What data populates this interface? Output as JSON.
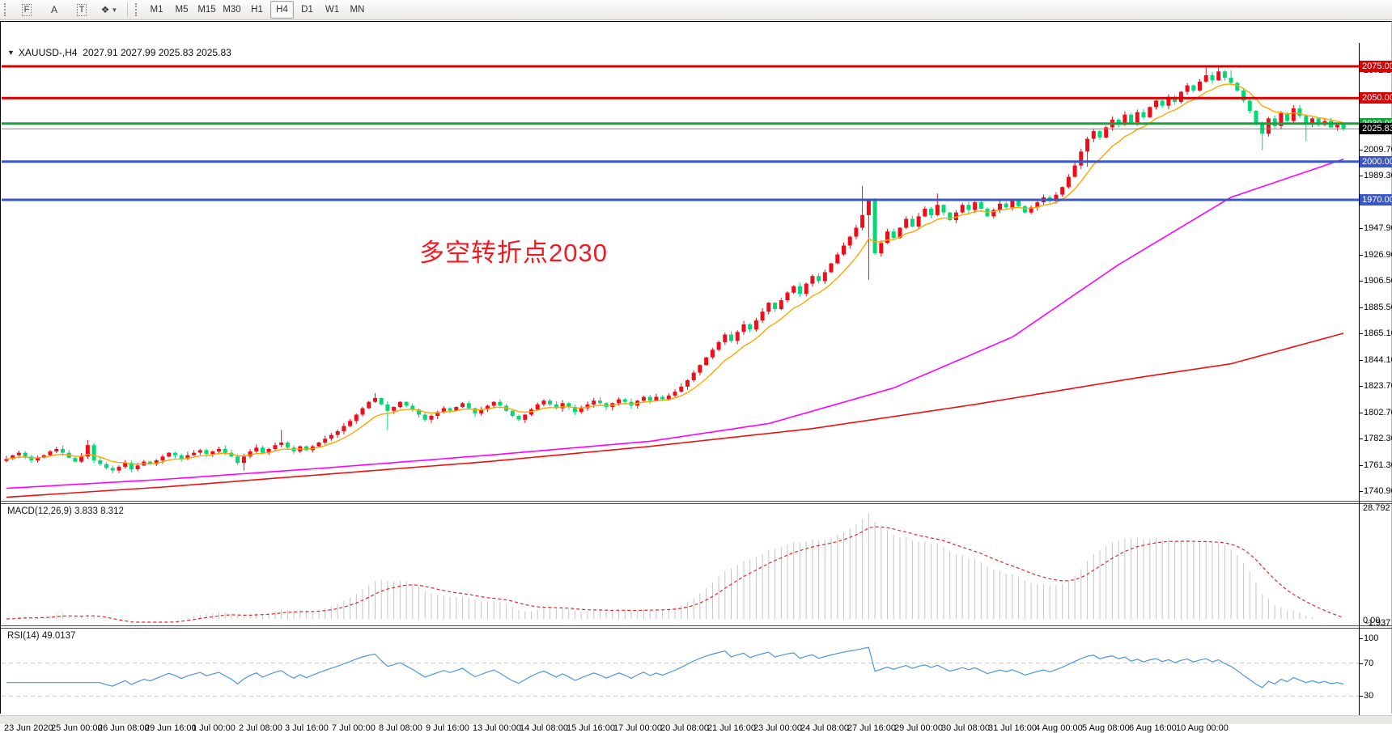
{
  "toolbar": {
    "tools": [
      {
        "name": "indicators-grid",
        "label": "F"
      },
      {
        "name": "text-label",
        "label": "A"
      },
      {
        "name": "text-box",
        "label": "T"
      },
      {
        "name": "shapes",
        "label": "❖"
      }
    ],
    "timeframes": [
      "M1",
      "M5",
      "M15",
      "M30",
      "H1",
      "H4",
      "D1",
      "W1",
      "MN"
    ],
    "active_timeframe": "H4"
  },
  "chart": {
    "symbol_label": "XAUUSD-,H4",
    "quote_ohlc": "2027.91 2027.99 2025.83 2025.83",
    "dropdown_glyph": "▼",
    "levels": [
      {
        "label": "2075.00",
        "price": 2075.0,
        "color": "#d90000",
        "thickness": 3,
        "kind": "resistance-line"
      },
      {
        "label": "2050.00",
        "price": 2050.0,
        "color": "#d90000",
        "thickness": 3,
        "kind": "resistance-line"
      },
      {
        "label": "2030.00",
        "price": 2030.0,
        "color": "#18a13d",
        "thickness": 3,
        "kind": "pivot-line"
      },
      {
        "label": "2025.83",
        "price": 2025.83,
        "color": "#000000",
        "line_color": "#868686",
        "thickness": 1,
        "kind": "current-price-line"
      },
      {
        "label": "2000.00",
        "price": 2000.0,
        "color": "#3a57c8",
        "thickness": 3,
        "kind": "support-line"
      },
      {
        "label": "1970.00",
        "price": 1970.0,
        "color": "#3a57c8",
        "thickness": 3,
        "kind": "support-line"
      }
    ],
    "axis_ticks": [
      "2072.10",
      "2009.70",
      "1989.30",
      "1947.90",
      "1926.90",
      "1906.50",
      "1885.50",
      "1865.10",
      "1844.10",
      "1823.70",
      "1802.70",
      "1782.30",
      "1761.30",
      "1740.90"
    ],
    "annotation": {
      "text": "多空转折点2030",
      "color": "#ed1c24"
    }
  },
  "macd": {
    "label": "MACD(12,26,9)",
    "value": "3.833",
    "signal": "8.312",
    "axis_max": "28.792",
    "axis_min_labels": [
      "0.00",
      "-1.937"
    ]
  },
  "rsi": {
    "label": "RSI(14)",
    "value": "49.0137",
    "levels": [
      "100",
      "70",
      "30",
      "0"
    ]
  },
  "chart_data": {
    "type": "candlestick",
    "symbol": "XAUUSD",
    "timeframe": "H4",
    "title": "XAUUSD-,H4 2027.91 2027.99 2025.83 2025.83",
    "price_axis_range": [
      1740.9,
      2075.0
    ],
    "grid": false,
    "colors": {
      "bull_body": "#ee0d18",
      "bear_body": "#00d974",
      "ma_fast": "#ffa500",
      "ma_mid": "#ff00ff",
      "ma_slow": "#ee1010",
      "macd_hist": "#c4c4c4",
      "macd_signal": "#e02828",
      "rsi_line": "#4e94dc",
      "rsi_grid": "#c8c8c8"
    },
    "closes": [
      1766,
      1769,
      1771,
      1768,
      1765,
      1767,
      1769,
      1772,
      1774,
      1771,
      1767,
      1764,
      1768,
      1777,
      1765,
      1762,
      1759,
      1757,
      1760,
      1763,
      1758,
      1761,
      1764,
      1762,
      1765,
      1768,
      1771,
      1769,
      1766,
      1769,
      1771,
      1773,
      1770,
      1772,
      1774,
      1771,
      1768,
      1763,
      1768,
      1772,
      1775,
      1771,
      1774,
      1777,
      1779,
      1775,
      1772,
      1776,
      1773,
      1776,
      1779,
      1782,
      1785,
      1788,
      1792,
      1796,
      1801,
      1806,
      1811,
      1814,
      1809,
      1804,
      1807,
      1811,
      1808,
      1805,
      1801,
      1797,
      1800,
      1803,
      1806,
      1804,
      1807,
      1810,
      1806,
      1802,
      1805,
      1808,
      1811,
      1808,
      1804,
      1800,
      1797,
      1801,
      1805,
      1809,
      1812,
      1809,
      1806,
      1810,
      1807,
      1803,
      1806,
      1809,
      1812,
      1810,
      1807,
      1810,
      1813,
      1811,
      1808,
      1812,
      1815,
      1812,
      1815,
      1813,
      1816,
      1819,
      1823,
      1828,
      1834,
      1840,
      1846,
      1852,
      1858,
      1864,
      1859,
      1866,
      1872,
      1868,
      1875,
      1882,
      1889,
      1884,
      1891,
      1897,
      1902,
      1896,
      1904,
      1910,
      1906,
      1913,
      1920,
      1927,
      1934,
      1941,
      1948,
      1958,
      1970,
      1928,
      1936,
      1945,
      1940,
      1948,
      1955,
      1949,
      1957,
      1963,
      1958,
      1966,
      1960,
      1954,
      1960,
      1966,
      1962,
      1968,
      1963,
      1957,
      1962,
      1967,
      1964,
      1969,
      1965,
      1960,
      1964,
      1968,
      1972,
      1969,
      1974,
      1980,
      1988,
      1997,
      2008,
      2018,
      2024,
      2019,
      2027,
      2033,
      2029,
      2037,
      2031,
      2039,
      2035,
      2043,
      2048,
      2044,
      2051,
      2047,
      2055,
      2060,
      2056,
      2063,
      2068,
      2064,
      2071,
      2066,
      2062,
      2056,
      2048,
      2040,
      2030,
      2022,
      2034,
      2028,
      2038,
      2032,
      2042,
      2036,
      2030,
      2034,
      2029,
      2032,
      2027,
      2029,
      2025.8
    ],
    "wick_overrides": {
      "13": [
        1781,
        null
      ],
      "38": [
        null,
        1757
      ],
      "44": [
        1789,
        null
      ],
      "59": [
        1818,
        null
      ],
      "61": [
        null,
        1789
      ],
      "137": [
        1981,
        null
      ],
      "138": [
        null,
        1907
      ],
      "149": [
        1975,
        null
      ],
      "173": [
        null,
        1996
      ],
      "192": [
        2074,
        null
      ],
      "194": [
        2075,
        null
      ],
      "196": [
        2072,
        null
      ],
      "201": [
        null,
        2009
      ],
      "208": [
        null,
        2016
      ]
    },
    "moving_averages": [
      {
        "name": "fast-ema-orange",
        "method": "ema",
        "period": 9
      },
      {
        "name": "mid-ma-magenta",
        "method": "anchors",
        "bars": [
          0,
          25,
          51,
          77,
          103,
          122,
          142,
          161,
          178,
          196,
          214
        ],
        "values": [
          1743,
          1750,
          1759,
          1769,
          1780,
          1794,
          1822,
          1862,
          1919,
          1972,
          2002
        ]
      },
      {
        "name": "slow-ma-red",
        "method": "anchors",
        "bars": [
          0,
          25,
          51,
          77,
          103,
          129,
          155,
          181,
          196,
          214
        ],
        "values": [
          1736,
          1744,
          1754,
          1764,
          1776,
          1790,
          1809,
          1830,
          1841,
          1865
        ]
      }
    ],
    "macd_params": {
      "fast": 12,
      "slow": 26,
      "signal": 9,
      "last": 3.833,
      "last_signal": 8.312,
      "axis_max": 28.792
    },
    "rsi_params": {
      "period": 14,
      "last": 49.0137,
      "levels": [
        70,
        30
      ]
    },
    "x_labels": [
      "23 Jun 2020",
      "25 Jun 00:00",
      "26 Jun 08:00",
      "29 Jun 16:00",
      "1 Jul 00:00",
      "2 Jul 08:00",
      "3 Jul 16:00",
      "7 Jul 00:00",
      "8 Jul 08:00",
      "9 Jul 16:00",
      "13 Jul 00:00",
      "14 Jul 08:00",
      "15 Jul 16:00",
      "17 Jul 00:00",
      "20 Jul 08:00",
      "21 Jul 16:00",
      "23 Jul 00:00",
      "24 Jul 08:00",
      "27 Jul 16:00",
      "29 Jul 00:00",
      "30 Jul 08:00",
      "31 Jul 16:00",
      "4 Aug 00:00",
      "5 Aug 08:00",
      "6 Aug 16:00",
      "10 Aug 00:00"
    ]
  }
}
